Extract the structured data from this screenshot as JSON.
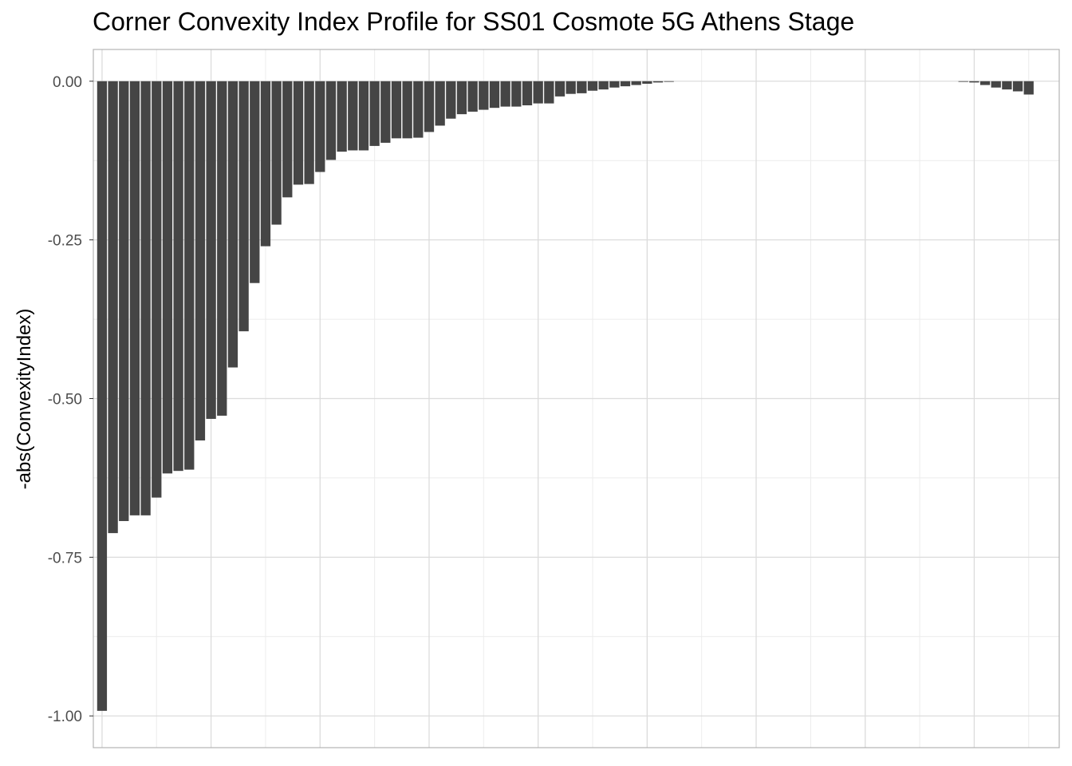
{
  "chart_data": {
    "type": "bar",
    "title": "Corner Convexity Index Profile for SS01 Cosmote 5G Athens Stage",
    "xlabel": "",
    "ylabel": "-abs(ConvexityIndex)",
    "ylim": [
      -1.05,
      0.05
    ],
    "yticks": [
      "0.00",
      "-0.25",
      "-0.50",
      "-0.75",
      "-1.00"
    ],
    "ytick_values": [
      0,
      -0.25,
      -0.5,
      -0.75,
      -1.0
    ],
    "xlim": [
      0.2,
      88.8
    ],
    "x_major_grid": [
      1,
      11,
      21,
      31,
      41,
      51,
      61,
      71,
      81
    ],
    "x_minor_grid": [
      6,
      16,
      26,
      36,
      46,
      56,
      66,
      76,
      86
    ],
    "grid": true,
    "bar_color": "#454545",
    "grid_color": "#dcdcdc",
    "panel_border_color": "#b3b3b3",
    "x": [
      1,
      2,
      3,
      4,
      5,
      6,
      7,
      8,
      9,
      10,
      11,
      12,
      13,
      14,
      15,
      16,
      17,
      18,
      19,
      20,
      21,
      22,
      23,
      24,
      25,
      26,
      27,
      28,
      29,
      30,
      31,
      32,
      33,
      34,
      35,
      36,
      37,
      38,
      39,
      40,
      41,
      42,
      43,
      44,
      45,
      46,
      47,
      48,
      49,
      50,
      51,
      52,
      53,
      80,
      81,
      82,
      83,
      84,
      85,
      86
    ],
    "values": [
      -0.992,
      -0.712,
      -0.693,
      -0.684,
      -0.684,
      -0.656,
      -0.618,
      -0.614,
      -0.612,
      -0.566,
      -0.532,
      -0.527,
      -0.451,
      -0.394,
      -0.318,
      -0.26,
      -0.226,
      -0.183,
      -0.163,
      -0.162,
      -0.143,
      -0.124,
      -0.111,
      -0.109,
      -0.109,
      -0.102,
      -0.097,
      -0.09,
      -0.09,
      -0.089,
      -0.08,
      -0.07,
      -0.059,
      -0.052,
      -0.048,
      -0.045,
      -0.042,
      -0.04,
      -0.04,
      -0.038,
      -0.035,
      -0.035,
      -0.024,
      -0.02,
      -0.019,
      -0.015,
      -0.013,
      -0.01,
      -0.008,
      -0.006,
      -0.004,
      -0.002,
      -0.0005,
      -0.001,
      -0.002,
      -0.006,
      -0.01,
      -0.013,
      -0.016,
      -0.021
    ]
  }
}
